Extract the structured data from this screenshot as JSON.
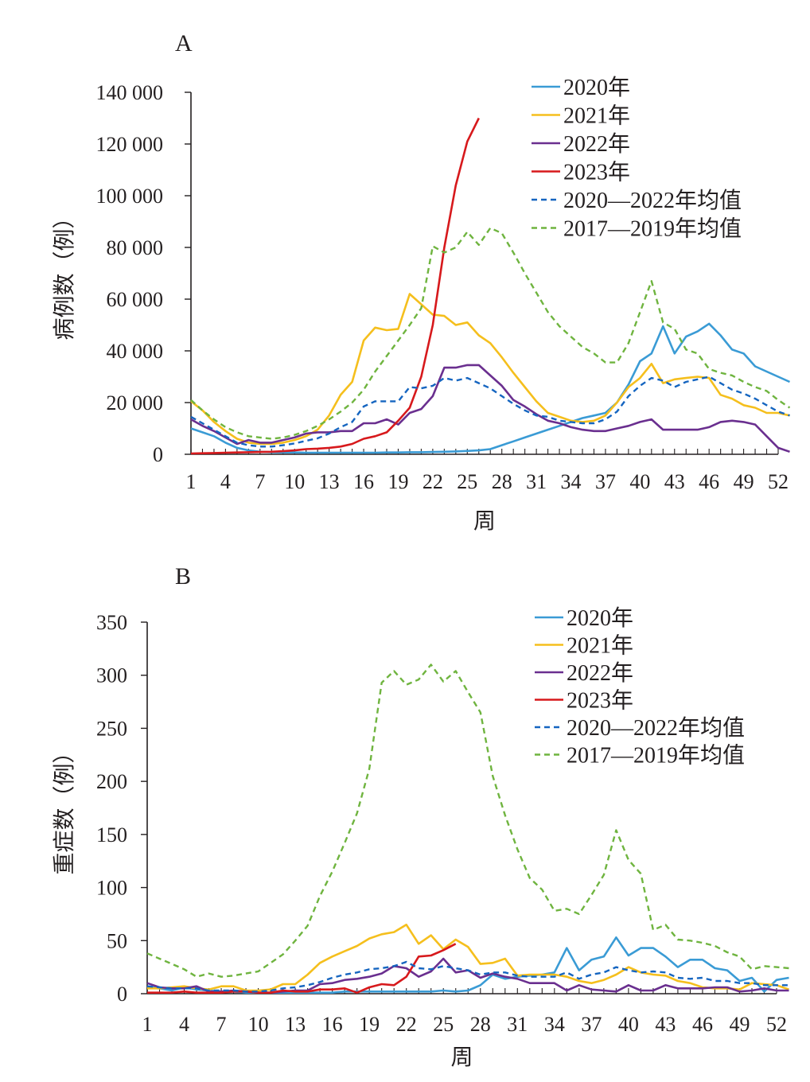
{
  "chart_data": [
    {
      "type": "line",
      "panel_label": "A",
      "xlabel": "周",
      "ylabel": "病例数（例）",
      "ylim": [
        0,
        140000
      ],
      "yticks": [
        0,
        20000,
        40000,
        60000,
        80000,
        100000,
        120000,
        140000
      ],
      "ytick_labels": [
        "0",
        "20 000",
        "40 000",
        "60 000",
        "80 000",
        "100 000",
        "120 000",
        "140 000"
      ],
      "xlim": [
        1,
        52
      ],
      "xticks": [
        1,
        4,
        7,
        10,
        13,
        16,
        19,
        22,
        25,
        28,
        31,
        34,
        37,
        40,
        43,
        46,
        49,
        52
      ],
      "legend_position": "top-right",
      "series": [
        {
          "name": "2020年",
          "color": "#3a9bd5",
          "dash": "solid",
          "start_week": 1,
          "values": [
            10000,
            8500,
            7000,
            4500,
            2500,
            1500,
            1000,
            800,
            700,
            700,
            600,
            600,
            600,
            600,
            600,
            600,
            600,
            700,
            700,
            800,
            800,
            900,
            1000,
            1100,
            1300,
            1500,
            2000,
            3500,
            5000,
            6500,
            8000,
            9500,
            11000,
            12500,
            14000,
            15000,
            16000,
            20000,
            27000,
            36000,
            39000,
            49500,
            39000,
            45500,
            47500,
            50500,
            46000,
            40500,
            39000,
            34000,
            32000,
            30000,
            28000
          ]
        },
        {
          "name": "2021年",
          "color": "#f5bf1d",
          "dash": "solid",
          "start_week": 1,
          "values": [
            20500,
            17000,
            12500,
            9000,
            6000,
            4500,
            4000,
            4000,
            4500,
            5500,
            7000,
            9500,
            15000,
            23000,
            28000,
            44000,
            49000,
            48000,
            48500,
            62000,
            58000,
            54000,
            53500,
            50000,
            51000,
            46000,
            43000,
            37500,
            31500,
            26000,
            20500,
            16000,
            14500,
            13000,
            12500,
            13000,
            15000,
            20000,
            26000,
            29500,
            35000,
            27500,
            29000,
            29500,
            30000,
            29500,
            23000,
            21500,
            19000,
            18000,
            16000,
            16000,
            15000
          ]
        },
        {
          "name": "2022年",
          "color": "#6a2f8f",
          "dash": "solid",
          "start_week": 1,
          "values": [
            13500,
            11000,
            9000,
            6500,
            4000,
            5500,
            4500,
            4500,
            5500,
            6500,
            8000,
            8500,
            8500,
            9000,
            9000,
            12000,
            12000,
            13500,
            11500,
            16000,
            17500,
            22500,
            33500,
            33500,
            34500,
            34500,
            30500,
            26500,
            21000,
            18500,
            15500,
            13000,
            12000,
            10500,
            9500,
            9000,
            9000,
            10000,
            11000,
            12500,
            13500,
            9500,
            9500,
            9500,
            9500,
            10500,
            12500,
            13000,
            12500,
            11500,
            7000,
            2500,
            1000
          ]
        },
        {
          "name": "2023年",
          "color": "#d7191c",
          "dash": "solid",
          "start_week": 1,
          "values": [
            300,
            400,
            500,
            600,
            700,
            800,
            900,
            1000,
            1200,
            1500,
            2000,
            2200,
            2500,
            3000,
            4000,
            6000,
            7000,
            8500,
            13000,
            18000,
            30000,
            50000,
            80000,
            104000,
            121000,
            130000
          ]
        },
        {
          "name": "2020—2022年均值",
          "color": "#1565c0",
          "dash": "dashed",
          "start_week": 1,
          "values": [
            14500,
            12000,
            9500,
            7000,
            4500,
            3500,
            3000,
            3000,
            3500,
            4200,
            5200,
            6200,
            8000,
            10500,
            12500,
            18500,
            20500,
            20500,
            20500,
            26000,
            25500,
            26500,
            29500,
            28500,
            29500,
            27500,
            25500,
            22500,
            19500,
            17000,
            15000,
            14500,
            13000,
            12500,
            12000,
            12000,
            13500,
            16500,
            22500,
            26500,
            29500,
            28500,
            26000,
            28000,
            29000,
            30000,
            27500,
            25000,
            23500,
            21500,
            19000,
            16500,
            15000
          ]
        },
        {
          "name": "2017—2019年均值",
          "color": "#6fb43f",
          "dash": "dashed",
          "start_week": 1,
          "values": [
            21000,
            17000,
            13500,
            10500,
            8500,
            7000,
            6500,
            6000,
            6500,
            7500,
            9000,
            11000,
            13500,
            16500,
            20000,
            25000,
            32000,
            38000,
            44000,
            50000,
            56500,
            80500,
            78000,
            80000,
            86000,
            81000,
            87500,
            85500,
            78000,
            70000,
            62500,
            55000,
            49500,
            45500,
            41500,
            39000,
            35500,
            35500,
            43000,
            55000,
            67000,
            51000,
            48500,
            40500,
            39000,
            33000,
            31500,
            30500,
            28000,
            26000,
            24500,
            21000,
            18000
          ]
        }
      ]
    },
    {
      "type": "line",
      "panel_label": "B",
      "xlabel": "周",
      "ylabel": "重症数（例）",
      "ylim": [
        0,
        350
      ],
      "yticks": [
        0,
        50,
        100,
        150,
        200,
        250,
        300,
        350
      ],
      "ytick_labels": [
        "0",
        "50",
        "100",
        "150",
        "200",
        "250",
        "300",
        "350"
      ],
      "xlim": [
        1,
        52
      ],
      "xticks": [
        1,
        4,
        7,
        10,
        13,
        16,
        19,
        22,
        25,
        28,
        31,
        34,
        37,
        40,
        43,
        46,
        49,
        52
      ],
      "legend_position": "top-right",
      "series": [
        {
          "name": "2020年",
          "color": "#3a9bd5",
          "dash": "solid",
          "start_week": 1,
          "values": [
            7,
            5,
            3,
            6,
            4,
            3,
            2,
            2,
            1,
            1,
            1,
            1,
            1,
            1,
            1,
            1,
            2,
            2,
            2,
            2,
            2,
            2,
            2,
            2,
            3,
            2,
            3,
            8,
            18,
            14,
            16,
            17,
            18,
            20,
            43,
            22,
            32,
            35,
            53,
            36,
            43,
            43,
            35,
            25,
            32,
            32,
            24,
            22,
            12,
            15,
            2,
            13,
            15
          ]
        },
        {
          "name": "2021年",
          "color": "#f5bf1d",
          "dash": "solid",
          "start_week": 1,
          "values": [
            5,
            5,
            6,
            7,
            5,
            4,
            7,
            7,
            3,
            3,
            4,
            9,
            9,
            18,
            29,
            35,
            40,
            45,
            52,
            56,
            58,
            65,
            47,
            55,
            42,
            51,
            44,
            28,
            29,
            33,
            17,
            18,
            18,
            18,
            16,
            12,
            10,
            13,
            18,
            25,
            20,
            18,
            17,
            12,
            10,
            6,
            5,
            5,
            4,
            10,
            9,
            8,
            4
          ]
        },
        {
          "name": "2022年",
          "color": "#6a2f8f",
          "dash": "solid",
          "start_week": 1,
          "values": [
            10,
            6,
            5,
            5,
            7,
            2,
            2,
            3,
            2,
            1,
            1,
            2,
            3,
            3,
            9,
            10,
            13,
            14,
            16,
            19,
            26,
            24,
            16,
            21,
            33,
            20,
            22,
            15,
            19,
            16,
            14,
            10,
            10,
            10,
            3,
            8,
            4,
            3,
            2,
            8,
            3,
            3,
            8,
            5,
            5,
            5,
            6,
            6,
            2,
            3,
            5,
            3,
            3
          ]
        },
        {
          "name": "2023年",
          "color": "#d7191c",
          "dash": "solid",
          "start_week": 1,
          "values": [
            1,
            1,
            1,
            2,
            1,
            1,
            1,
            2,
            2,
            1,
            1,
            3,
            2,
            2,
            4,
            4,
            5,
            1,
            6,
            9,
            8,
            16,
            35,
            36,
            41,
            47
          ]
        },
        {
          "name": "2020—2022年均值",
          "color": "#1565c0",
          "dash": "dashed",
          "start_week": 1,
          "values": [
            7,
            6,
            5,
            5,
            5,
            3,
            3,
            3,
            2,
            2,
            3,
            5,
            6,
            8,
            11,
            15,
            18,
            20,
            23,
            24,
            26,
            30,
            24,
            23,
            26,
            24,
            22,
            18,
            20,
            20,
            17,
            16,
            16,
            16,
            20,
            14,
            18,
            20,
            25,
            22,
            20,
            21,
            20,
            15,
            14,
            15,
            12,
            12,
            10,
            10,
            8,
            8,
            8
          ]
        },
        {
          "name": "2017—2019年均值",
          "color": "#6fb43f",
          "dash": "dashed",
          "start_week": 1,
          "values": [
            38,
            33,
            28,
            23,
            16,
            19,
            16,
            17,
            19,
            21,
            29,
            37,
            50,
            64,
            92,
            115,
            142,
            170,
            212,
            293,
            304,
            291,
            296,
            310,
            294,
            304,
            284,
            265,
            205,
            168,
            136,
            109,
            98,
            78,
            80,
            75,
            93,
            112,
            154,
            126,
            113,
            60,
            65,
            51,
            50,
            48,
            45,
            39,
            35,
            23,
            26,
            25,
            24
          ]
        }
      ]
    }
  ]
}
